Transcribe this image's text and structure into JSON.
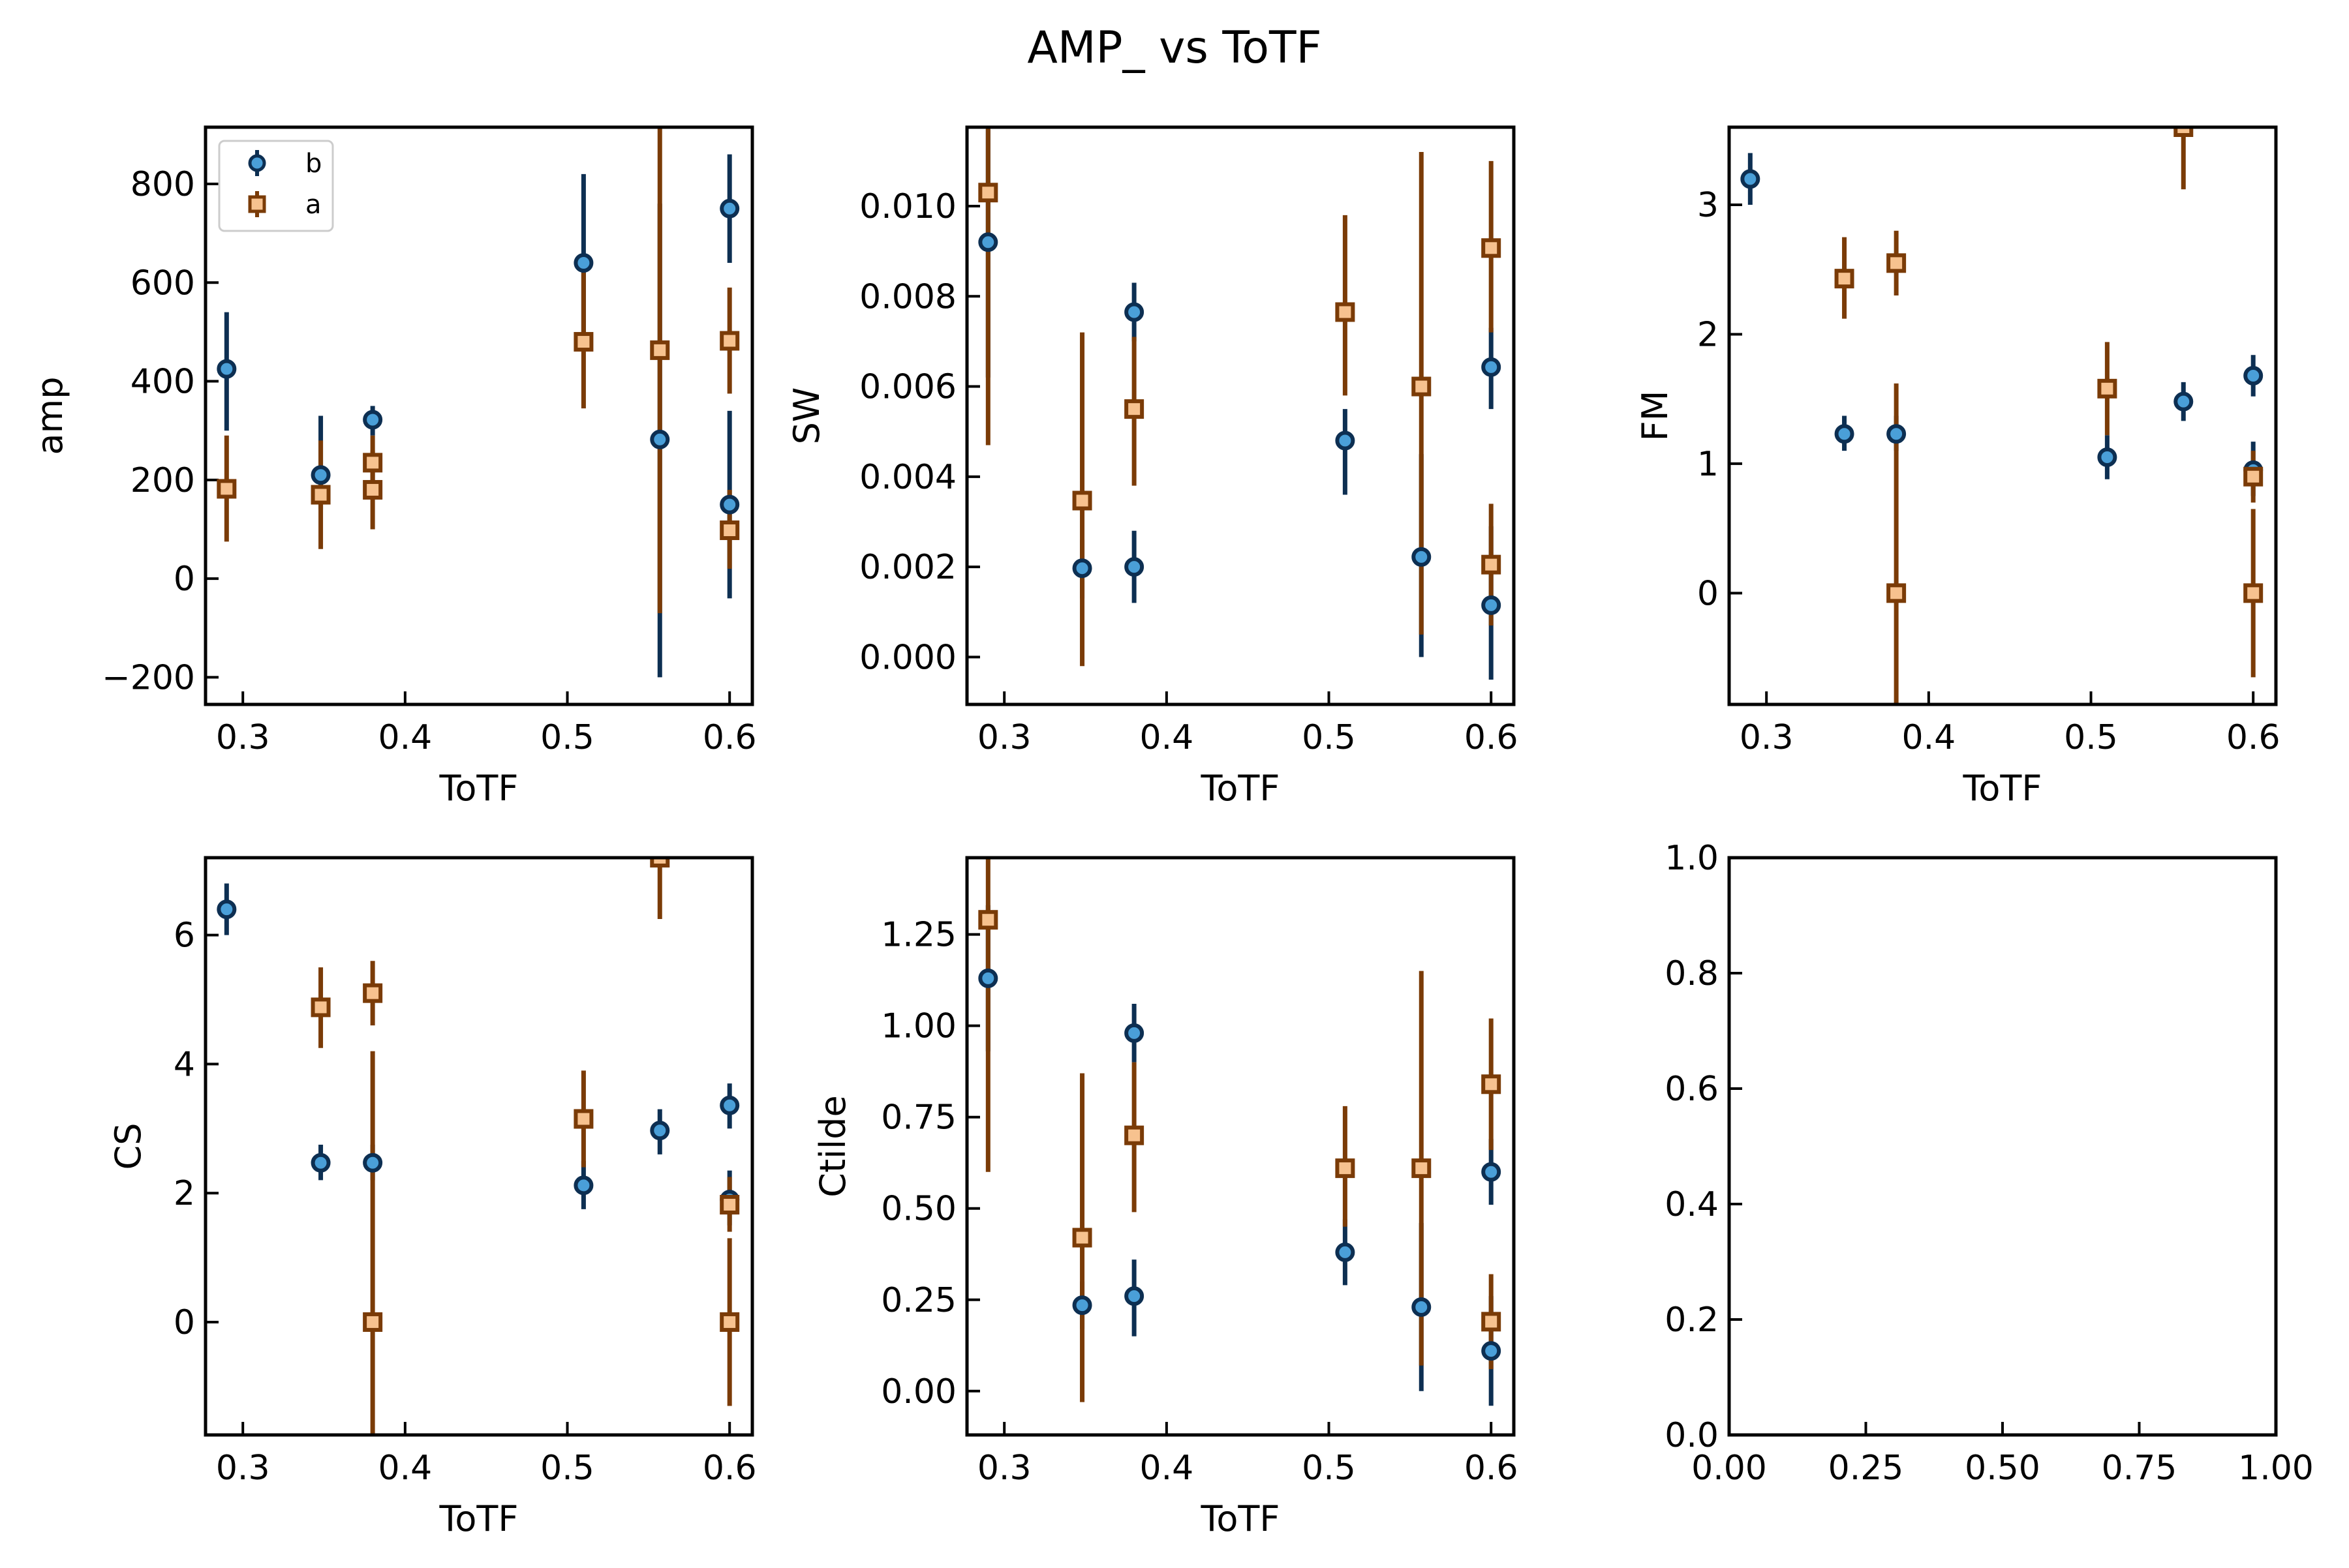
{
  "title": "AMP_ vs ToTF",
  "colors": {
    "b_face": "#4a9fd8",
    "b_edge": "#0d2f52",
    "a_face": "#f7c28f",
    "a_edge": "#7a3b07",
    "axis": "#000000"
  },
  "legend": {
    "placement": "upper-left",
    "panel": 0
  },
  "chart_data": [
    {
      "type": "scatter",
      "xlabel": "ToTF",
      "ylabel": "amp",
      "xlim": [
        0.277,
        0.614
      ],
      "ylim": [
        -255,
        915
      ],
      "xticks": [
        0.3,
        0.4,
        0.5,
        0.6
      ],
      "xtick_labels": [
        "0.3",
        "0.4",
        "0.5",
        "0.6"
      ],
      "yticks": [
        -200,
        0,
        200,
        400,
        600,
        800
      ],
      "ytick_labels": [
        "−200",
        "0",
        "200",
        "400",
        "600",
        "800"
      ],
      "series": [
        {
          "name": "b",
          "marker": "circle",
          "points": [
            {
              "x": 0.29,
              "y": 425,
              "lo": 300,
              "hi": 540
            },
            {
              "x": 0.348,
              "y": 210,
              "lo": 140,
              "hi": 330
            },
            {
              "x": 0.38,
              "y": 322,
              "lo": 290,
              "hi": 350
            },
            {
              "x": 0.51,
              "y": 640,
              "lo": 480,
              "hi": 820
            },
            {
              "x": 0.557,
              "y": 282,
              "lo": -200,
              "hi": 760
            },
            {
              "x": 0.6,
              "y": 750,
              "lo": 640,
              "hi": 860
            },
            {
              "x": 0.6,
              "y": 150,
              "lo": -40,
              "hi": 340
            }
          ]
        },
        {
          "name": "a",
          "marker": "square",
          "points": [
            {
              "x": 0.29,
              "y": 182,
              "lo": 75,
              "hi": 290
            },
            {
              "x": 0.348,
              "y": 170,
              "lo": 60,
              "hi": 280
            },
            {
              "x": 0.38,
              "y": 235,
              "lo": 180,
              "hi": 290
            },
            {
              "x": 0.38,
              "y": 180,
              "lo": 100,
              "hi": 260
            },
            {
              "x": 0.51,
              "y": 480,
              "lo": 345,
              "hi": 620
            },
            {
              "x": 0.557,
              "y": 463,
              "lo": -70,
              "hi": 915
            },
            {
              "x": 0.6,
              "y": 482,
              "lo": 375,
              "hi": 590
            },
            {
              "x": 0.6,
              "y": 98,
              "lo": 20,
              "hi": 180
            }
          ]
        }
      ]
    },
    {
      "type": "scatter",
      "xlabel": "ToTF",
      "ylabel": "SW",
      "xlim": [
        0.277,
        0.614
      ],
      "ylim": [
        -0.00105,
        0.01175
      ],
      "xticks": [
        0.3,
        0.4,
        0.5,
        0.6
      ],
      "xtick_labels": [
        "0.3",
        "0.4",
        "0.5",
        "0.6"
      ],
      "yticks": [
        0.0,
        0.002,
        0.004,
        0.006,
        0.008,
        0.01
      ],
      "ytick_labels": [
        "0.000",
        "0.002",
        "0.004",
        "0.006",
        "0.008",
        "0.010"
      ],
      "series": [
        {
          "name": "b",
          "marker": "circle",
          "points": [
            {
              "x": 0.29,
              "y": 0.0092,
              "lo": 0.0062,
              "hi": 0.0117
            },
            {
              "x": 0.348,
              "y": 0.00197,
              "lo": 0.0013,
              "hi": 0.0026
            },
            {
              "x": 0.38,
              "y": 0.002,
              "lo": 0.0012,
              "hi": 0.0028
            },
            {
              "x": 0.38,
              "y": 0.00765,
              "lo": 0.007,
              "hi": 0.0083
            },
            {
              "x": 0.51,
              "y": 0.0048,
              "lo": 0.0036,
              "hi": 0.0055
            },
            {
              "x": 0.557,
              "y": 0.00222,
              "lo": 0.0,
              "hi": 0.0045
            },
            {
              "x": 0.6,
              "y": 0.00115,
              "lo": -0.0005,
              "hi": 0.0029
            },
            {
              "x": 0.6,
              "y": 0.00643,
              "lo": 0.0055,
              "hi": 0.0073
            }
          ]
        },
        {
          "name": "a",
          "marker": "square",
          "points": [
            {
              "x": 0.29,
              "y": 0.0103,
              "lo": 0.0047,
              "hi": 0.01175
            },
            {
              "x": 0.348,
              "y": 0.00347,
              "lo": -0.0002,
              "hi": 0.0072
            },
            {
              "x": 0.38,
              "y": 0.0055,
              "lo": 0.0038,
              "hi": 0.0071
            },
            {
              "x": 0.51,
              "y": 0.00765,
              "lo": 0.0058,
              "hi": 0.0098
            },
            {
              "x": 0.557,
              "y": 0.006,
              "lo": 0.0005,
              "hi": 0.0112
            },
            {
              "x": 0.6,
              "y": 0.00907,
              "lo": 0.0072,
              "hi": 0.011
            },
            {
              "x": 0.6,
              "y": 0.00205,
              "lo": 0.0007,
              "hi": 0.0034
            }
          ]
        }
      ]
    },
    {
      "type": "scatter",
      "xlabel": "ToTF",
      "ylabel": "FM",
      "xlim": [
        0.277,
        0.614
      ],
      "ylim": [
        -0.86,
        3.6
      ],
      "xticks": [
        0.3,
        0.4,
        0.5,
        0.6
      ],
      "xtick_labels": [
        "0.3",
        "0.4",
        "0.5",
        "0.6"
      ],
      "yticks": [
        0,
        1,
        2,
        3
      ],
      "ytick_labels": [
        "0",
        "1",
        "2",
        "3"
      ],
      "series": [
        {
          "name": "b",
          "marker": "circle",
          "points": [
            {
              "x": 0.29,
              "y": 3.2,
              "lo": 3.0,
              "hi": 3.4
            },
            {
              "x": 0.348,
              "y": 1.23,
              "lo": 1.1,
              "hi": 1.37
            },
            {
              "x": 0.38,
              "y": 1.23,
              "lo": 1.1,
              "hi": 1.37
            },
            {
              "x": 0.51,
              "y": 1.05,
              "lo": 0.88,
              "hi": 1.22
            },
            {
              "x": 0.557,
              "y": 1.48,
              "lo": 1.33,
              "hi": 1.63
            },
            {
              "x": 0.6,
              "y": 1.68,
              "lo": 1.52,
              "hi": 1.84
            },
            {
              "x": 0.6,
              "y": 0.95,
              "lo": 0.75,
              "hi": 1.17
            }
          ]
        },
        {
          "name": "a",
          "marker": "square",
          "points": [
            {
              "x": 0.348,
              "y": 2.43,
              "lo": 2.12,
              "hi": 2.75
            },
            {
              "x": 0.38,
              "y": 2.55,
              "lo": 2.3,
              "hi": 2.8
            },
            {
              "x": 0.38,
              "y": 0.0,
              "lo": -0.86,
              "hi": 1.62
            },
            {
              "x": 0.51,
              "y": 1.58,
              "lo": 1.22,
              "hi": 1.94
            },
            {
              "x": 0.557,
              "y": 3.6,
              "lo": 3.12,
              "hi": 3.6
            },
            {
              "x": 0.6,
              "y": 0.9,
              "lo": 0.7,
              "hi": 1.1
            },
            {
              "x": 0.6,
              "y": 0.0,
              "lo": -0.65,
              "hi": 0.65
            }
          ]
        }
      ]
    },
    {
      "type": "scatter",
      "xlabel": "ToTF",
      "ylabel": "CS",
      "xlim": [
        0.277,
        0.614
      ],
      "ylim": [
        -1.75,
        7.2
      ],
      "xticks": [
        0.3,
        0.4,
        0.5,
        0.6
      ],
      "xtick_labels": [
        "0.3",
        "0.4",
        "0.5",
        "0.6"
      ],
      "yticks": [
        0,
        2,
        4,
        6
      ],
      "ytick_labels": [
        "0",
        "2",
        "4",
        "6"
      ],
      "series": [
        {
          "name": "b",
          "marker": "circle",
          "points": [
            {
              "x": 0.29,
              "y": 6.4,
              "lo": 6.0,
              "hi": 6.8
            },
            {
              "x": 0.348,
              "y": 2.47,
              "lo": 2.2,
              "hi": 2.75
            },
            {
              "x": 0.38,
              "y": 2.47,
              "lo": 2.2,
              "hi": 2.75
            },
            {
              "x": 0.51,
              "y": 2.12,
              "lo": 1.75,
              "hi": 2.5
            },
            {
              "x": 0.557,
              "y": 2.97,
              "lo": 2.6,
              "hi": 3.3
            },
            {
              "x": 0.6,
              "y": 3.36,
              "lo": 3.0,
              "hi": 3.7
            },
            {
              "x": 0.6,
              "y": 1.9,
              "lo": 1.5,
              "hi": 2.35
            }
          ]
        },
        {
          "name": "a",
          "marker": "square",
          "points": [
            {
              "x": 0.348,
              "y": 4.88,
              "lo": 4.25,
              "hi": 5.5
            },
            {
              "x": 0.38,
              "y": 5.1,
              "lo": 4.6,
              "hi": 5.6
            },
            {
              "x": 0.38,
              "y": 0.0,
              "lo": -1.75,
              "hi": 4.2
            },
            {
              "x": 0.51,
              "y": 3.15,
              "lo": 2.4,
              "hi": 3.9
            },
            {
              "x": 0.557,
              "y": 7.2,
              "lo": 6.25,
              "hi": 7.2
            },
            {
              "x": 0.6,
              "y": 1.82,
              "lo": 1.4,
              "hi": 2.25
            },
            {
              "x": 0.6,
              "y": 0.0,
              "lo": -1.3,
              "hi": 1.3
            }
          ]
        }
      ]
    },
    {
      "type": "scatter",
      "xlabel": "ToTF",
      "ylabel": "Ctilde",
      "xlim": [
        0.277,
        0.614
      ],
      "ylim": [
        -0.12,
        1.46
      ],
      "xticks": [
        0.3,
        0.4,
        0.5,
        0.6
      ],
      "xtick_labels": [
        "0.3",
        "0.4",
        "0.5",
        "0.6"
      ],
      "yticks": [
        0.0,
        0.25,
        0.5,
        0.75,
        1.0,
        1.25
      ],
      "ytick_labels": [
        "0.00",
        "0.25",
        "0.50",
        "0.75",
        "1.00",
        "1.25"
      ],
      "series": [
        {
          "name": "b",
          "marker": "circle",
          "points": [
            {
              "x": 0.29,
              "y": 1.13,
              "lo": 0.93,
              "hi": 1.33
            },
            {
              "x": 0.348,
              "y": 0.235,
              "lo": 0.17,
              "hi": 0.3
            },
            {
              "x": 0.38,
              "y": 0.26,
              "lo": 0.15,
              "hi": 0.36
            },
            {
              "x": 0.38,
              "y": 0.98,
              "lo": 0.9,
              "hi": 1.06
            },
            {
              "x": 0.51,
              "y": 0.38,
              "lo": 0.29,
              "hi": 0.47
            },
            {
              "x": 0.557,
              "y": 0.23,
              "lo": 0.0,
              "hi": 0.46
            },
            {
              "x": 0.6,
              "y": 0.11,
              "lo": -0.04,
              "hi": 0.26
            },
            {
              "x": 0.6,
              "y": 0.6,
              "lo": 0.51,
              "hi": 0.69
            }
          ]
        },
        {
          "name": "a",
          "marker": "square",
          "points": [
            {
              "x": 0.29,
              "y": 1.29,
              "lo": 0.6,
              "hi": 1.46
            },
            {
              "x": 0.348,
              "y": 0.42,
              "lo": -0.03,
              "hi": 0.87
            },
            {
              "x": 0.38,
              "y": 0.7,
              "lo": 0.49,
              "hi": 0.9
            },
            {
              "x": 0.51,
              "y": 0.61,
              "lo": 0.45,
              "hi": 0.78
            },
            {
              "x": 0.557,
              "y": 0.61,
              "lo": 0.07,
              "hi": 1.15
            },
            {
              "x": 0.6,
              "y": 0.84,
              "lo": 0.66,
              "hi": 1.02
            },
            {
              "x": 0.6,
              "y": 0.19,
              "lo": 0.06,
              "hi": 0.32
            }
          ]
        }
      ]
    },
    {
      "type": "scatter",
      "xlabel": "",
      "ylabel": "",
      "xlim": [
        0.0,
        1.0
      ],
      "ylim": [
        0.0,
        1.0
      ],
      "xticks": [
        0.0,
        0.25,
        0.5,
        0.75,
        1.0
      ],
      "xtick_labels": [
        "0.00",
        "0.25",
        "0.50",
        "0.75",
        "1.00"
      ],
      "yticks": [
        0.0,
        0.2,
        0.4,
        0.6,
        0.8,
        1.0
      ],
      "ytick_labels": [
        "0.0",
        "0.2",
        "0.4",
        "0.6",
        "0.8",
        "1.0"
      ],
      "series": []
    }
  ]
}
